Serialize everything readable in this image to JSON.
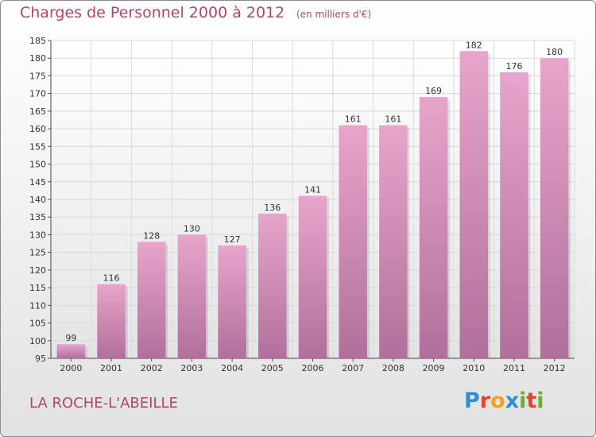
{
  "title": "Charges de Personnel 2000 à 2012",
  "unit_note": "(en milliers d'€)",
  "commune": "LA ROCHE-L'ABEILLE",
  "brand": {
    "letters": [
      "P",
      "r",
      "o",
      "x",
      "i",
      "t",
      "i"
    ],
    "colors": [
      "#2b8fd6",
      "#e8412c",
      "#f4a11d",
      "#2b8fd6",
      "#6ab023",
      "#e8412c",
      "#6ab023"
    ]
  },
  "colors": {
    "accent": "#b0456f",
    "bar_light": "#e8a5cb",
    "bar_dark": "#b0709b"
  },
  "chart_data": {
    "type": "bar",
    "title": "Charges de Personnel 2000 à 2012",
    "xlabel": "",
    "ylabel": "(en milliers d'€)",
    "categories": [
      "2000",
      "2001",
      "2002",
      "2003",
      "2004",
      "2005",
      "2006",
      "2007",
      "2008",
      "2009",
      "2010",
      "2011",
      "2012"
    ],
    "values": [
      99,
      116,
      128,
      130,
      127,
      136,
      141,
      161,
      161,
      169,
      182,
      176,
      180
    ],
    "ylim": [
      95,
      185
    ],
    "ytick_step": 5,
    "grid": true
  }
}
